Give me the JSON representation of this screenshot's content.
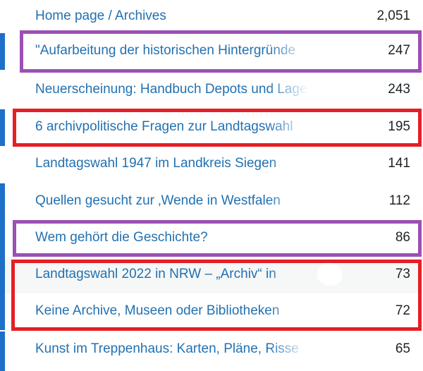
{
  "rows": [
    {
      "title": "Home page / Archives",
      "count": "2,051",
      "bar": false
    },
    {
      "title": "\"Aufarbeitung der historischen Hintergründe",
      "count": "247",
      "bar": true
    },
    {
      "title": "Neuerscheinung: Handbuch Depots und Lager",
      "count": "243",
      "bar": false
    },
    {
      "title": "6 archivpolitische Fragen zur Landtagswahl",
      "count": "195",
      "bar": true
    },
    {
      "title": "Landtagswahl 1947 im Landkreis Siegen",
      "count": "141",
      "bar": false
    },
    {
      "title": "Quellen gesucht zur ‚Wende in Westfalen",
      "count": "112",
      "bar": true
    },
    {
      "title": "Wem gehört die Geschichte?",
      "count": "86",
      "bar": true
    },
    {
      "title": "Landtagswahl 2022 in NRW – „Archiv“ in",
      "count": "73",
      "bar": true
    },
    {
      "title": "Keine Archive, Museen oder Bibliotheken",
      "count": "72",
      "bar": true
    },
    {
      "title": "Kunst im Treppenhaus: Karten, Pläne, Risse",
      "count": "65",
      "bar": true
    }
  ],
  "highlight_colors": {
    "purple": "#9b50b4",
    "red": "#e41f26"
  },
  "accent_bar_color": "#1e6fc7",
  "link_color": "#2271b1"
}
